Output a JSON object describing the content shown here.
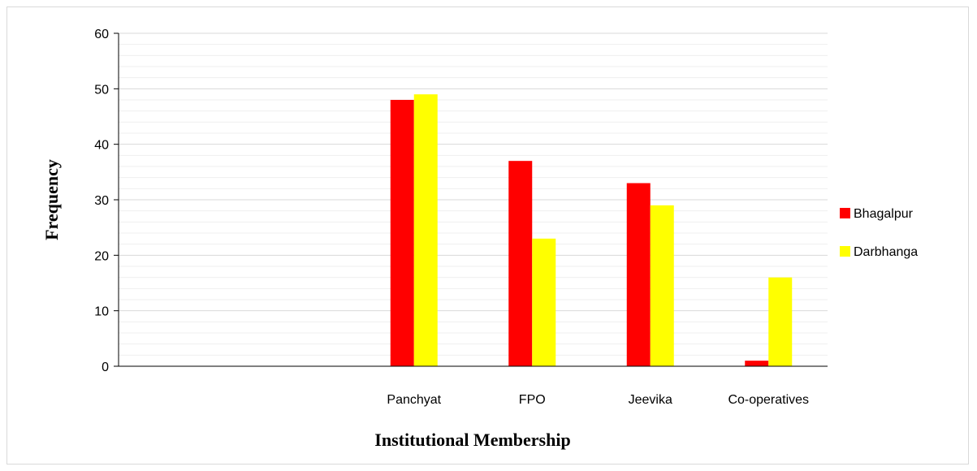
{
  "chart_data": {
    "type": "bar",
    "title": "",
    "xlabel": "Institutional Membership",
    "ylabel": "Frequency",
    "categories": [
      "",
      "",
      "Panchyat",
      "FPO",
      "Jeevika",
      "Co-operatives"
    ],
    "series": [
      {
        "name": "Bhagalpur",
        "color": "#ff0000",
        "values": [
          null,
          null,
          48,
          37,
          33,
          1
        ]
      },
      {
        "name": "Darbhanga",
        "color": "#ffff00",
        "values": [
          null,
          null,
          49,
          23,
          29,
          16
        ]
      }
    ],
    "ylim": [
      0,
      60
    ],
    "yticks": [
      0,
      10,
      20,
      30,
      40,
      50,
      60
    ],
    "grid": true,
    "legend_position": "right"
  }
}
